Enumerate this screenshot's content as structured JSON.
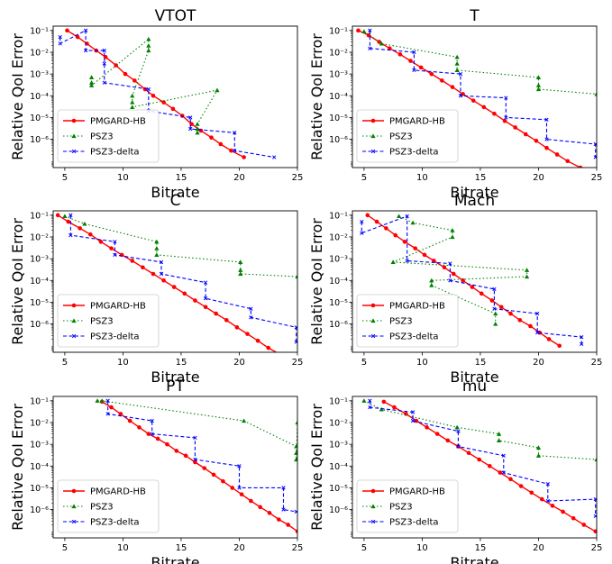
{
  "figure": {
    "ylabel": "Relative QoI Error",
    "xlabel": "Bitrate",
    "legend": [
      "PMGARD-HB",
      "PSZ3",
      "PSZ3-delta"
    ]
  },
  "colors": {
    "PMGARD-HB": "#ff0000",
    "PSZ3": "#008000",
    "PSZ3-delta": "#0000ff"
  },
  "chart_data": [
    {
      "type": "line",
      "title": "VTOT",
      "xlabel": "Bitrate",
      "ylabel": "Relative QoI Error",
      "xlim": [
        4,
        25
      ],
      "xticks": [
        5,
        10,
        15,
        20,
        25
      ],
      "ylim_log10": [
        -7.3,
        -0.8
      ],
      "yscale": "log",
      "yticks": [
        "10^-1",
        "10^-2",
        "10^-3",
        "10^-4",
        "10^-5",
        "10^-6"
      ],
      "legend_position": "lower-left",
      "series": [
        {
          "name": "PMGARD-HB",
          "x": [
            5.2,
            6.1,
            6.9,
            7.7,
            8.5,
            9.4,
            10.2,
            11.0,
            11.9,
            12.6,
            13.5,
            14.3,
            15.1,
            15.9,
            16.7,
            17.6,
            18.4,
            19.3,
            20.4
          ],
          "y": [
            0.1,
            0.05,
            0.025,
            0.012,
            0.006,
            0.0025,
            0.001,
            0.0005,
            0.0002,
            0.0001,
            5e-05,
            2.5e-05,
            1.2e-05,
            5e-06,
            2.5e-06,
            1.2e-06,
            6e-07,
            3e-07,
            1.5e-07
          ]
        },
        {
          "name": "PSZ3",
          "x": [
            7.3,
            7.3,
            7.3,
            12.2,
            12.2,
            12.2,
            10.8,
            10.8,
            10.8,
            18.1,
            16.4,
            16.4,
            16.4
          ],
          "y": [
            0.0007,
            0.0004,
            0.0003,
            0.04,
            0.02,
            0.012,
            0.0001,
            5e-05,
            3e-05,
            0.00018,
            5e-06,
            3e-06,
            2e-06
          ]
        },
        {
          "name": "PSZ3-delta",
          "x": [
            4.6,
            4.6,
            6.8,
            6.8,
            8.4,
            8.4,
            8.4,
            12.2,
            12.2,
            15.8,
            15.8,
            19.6,
            19.6,
            23.0
          ],
          "y": [
            0.05,
            0.025,
            0.1,
            0.012,
            0.012,
            0.003,
            0.0004,
            0.0002,
            2e-05,
            1e-05,
            3e-06,
            2e-06,
            3e-07,
            1.5e-07
          ]
        }
      ]
    },
    {
      "type": "line",
      "title": "T",
      "xlabel": "Bitrate",
      "ylabel": "Relative QoI Error",
      "xlim": [
        4,
        25
      ],
      "xticks": [
        5,
        10,
        15,
        20,
        25
      ],
      "ylim_log10": [
        -7.3,
        -0.8
      ],
      "yscale": "log",
      "yticks": [
        "10^-1",
        "10^-2",
        "10^-3",
        "10^-4",
        "10^-5",
        "10^-6"
      ],
      "legend_position": "lower-left",
      "series": [
        {
          "name": "PMGARD-HB",
          "x": [
            4.5,
            5.4,
            6.3,
            7.2,
            8.1,
            9.0,
            9.9,
            10.8,
            11.7,
            12.6,
            13.5,
            14.4,
            15.3,
            16.2,
            17.1,
            18.0,
            18.9,
            19.8,
            20.7,
            21.6,
            22.5,
            23.6
          ],
          "y": [
            0.1,
            0.06,
            0.03,
            0.015,
            0.008,
            0.004,
            0.002,
            0.001,
            0.0005,
            0.00025,
            0.00012,
            6e-05,
            3e-05,
            1.5e-05,
            7e-06,
            3.5e-06,
            1.7e-06,
            8.5e-07,
            4e-07,
            2e-07,
            1e-07,
            5e-08
          ]
        },
        {
          "name": "PSZ3",
          "x": [
            5.0,
            6.5,
            13.0,
            13.0,
            13.0,
            20.0,
            20.0,
            20.0,
            25.0
          ],
          "y": [
            0.09,
            0.025,
            0.006,
            0.003,
            0.0015,
            0.0007,
            0.0003,
            0.0002,
            0.00012
          ]
        },
        {
          "name": "PSZ3-delta",
          "x": [
            5.5,
            5.5,
            9.3,
            9.3,
            13.3,
            13.3,
            17.2,
            17.2,
            20.7,
            20.7,
            24.9,
            24.9
          ],
          "y": [
            0.1,
            0.015,
            0.01,
            0.0015,
            0.001,
            0.0001,
            8e-05,
            1e-05,
            8e-06,
            1e-06,
            6e-07,
            1.5e-07
          ]
        }
      ]
    },
    {
      "type": "line",
      "title": "C",
      "xlabel": "Bitrate",
      "ylabel": "Relative QoI Error",
      "xlim": [
        4,
        25
      ],
      "xticks": [
        5,
        10,
        15,
        20,
        25
      ],
      "ylim_log10": [
        -7.3,
        -0.8
      ],
      "yscale": "log",
      "yticks": [
        "10^-1",
        "10^-2",
        "10^-3",
        "10^-4",
        "10^-5",
        "10^-6"
      ],
      "legend_position": "lower-left",
      "series": [
        {
          "name": "PMGARD-HB",
          "x": [
            4.4,
            5.3,
            6.3,
            7.2,
            8.1,
            9.0,
            9.9,
            10.8,
            11.7,
            12.6,
            13.5,
            14.4,
            15.3,
            16.2,
            17.1,
            18.0,
            18.9,
            19.8,
            20.7,
            21.6,
            22.5,
            23.5
          ],
          "y": [
            0.1,
            0.05,
            0.025,
            0.013,
            0.006,
            0.003,
            0.0015,
            0.0008,
            0.0004,
            0.0002,
            0.0001,
            5e-05,
            2.5e-05,
            1.2e-05,
            6e-06,
            3e-06,
            1.5e-06,
            7e-07,
            3.5e-07,
            1.7e-07,
            8e-08,
            4e-08
          ]
        },
        {
          "name": "PSZ3",
          "x": [
            5.0,
            6.7,
            12.9,
            12.9,
            12.9,
            20.1,
            20.1,
            20.1,
            25.0
          ],
          "y": [
            0.09,
            0.04,
            0.006,
            0.003,
            0.0015,
            0.0007,
            0.0003,
            0.0002,
            0.00015
          ]
        },
        {
          "name": "PSZ3-delta",
          "x": [
            5.5,
            5.5,
            9.3,
            9.3,
            13.3,
            13.3,
            17.1,
            17.1,
            21.0,
            21.0,
            24.9,
            24.9
          ],
          "y": [
            0.1,
            0.012,
            0.006,
            0.0015,
            0.0007,
            0.0002,
            8e-05,
            1.5e-05,
            5e-06,
            2e-06,
            7e-07,
            1.5e-07
          ]
        }
      ]
    },
    {
      "type": "line",
      "title": "Mach",
      "xlabel": "Bitrate",
      "ylabel": "Relative QoI Error",
      "xlim": [
        4,
        25
      ],
      "xticks": [
        5,
        10,
        15,
        20,
        25
      ],
      "ylim_log10": [
        -7.3,
        -0.8
      ],
      "yscale": "log",
      "yticks": [
        "10^-1",
        "10^-2",
        "10^-3",
        "10^-4",
        "10^-5",
        "10^-6"
      ],
      "legend_position": "lower-left",
      "series": [
        {
          "name": "PMGARD-HB",
          "x": [
            5.3,
            6.1,
            6.9,
            7.7,
            8.5,
            9.4,
            10.2,
            11.0,
            11.9,
            12.7,
            13.5,
            14.3,
            15.1,
            16.0,
            16.8,
            17.6,
            18.4,
            19.3,
            20.1,
            20.9,
            21.8
          ],
          "y": [
            0.1,
            0.05,
            0.025,
            0.012,
            0.006,
            0.003,
            0.0015,
            0.0008,
            0.0004,
            0.0002,
            0.0001,
            5e-05,
            2.5e-05,
            1.2e-05,
            6e-06,
            3e-06,
            1.5e-06,
            8e-07,
            4e-07,
            2e-07,
            1e-07
          ]
        },
        {
          "name": "PSZ3",
          "x": [
            8.0,
            9.2,
            12.6,
            12.6,
            7.5,
            19.0,
            19.0,
            10.8,
            10.8,
            16.3,
            16.3
          ],
          "y": [
            0.09,
            0.045,
            0.02,
            0.01,
            0.0007,
            0.0003,
            0.00015,
            0.0001,
            6e-05,
            3e-06,
            1e-06
          ]
        },
        {
          "name": "PSZ3-delta",
          "x": [
            4.8,
            4.8,
            8.7,
            8.7,
            12.4,
            12.4,
            16.2,
            16.2,
            19.9,
            19.9,
            23.7,
            23.7
          ],
          "y": [
            0.05,
            0.015,
            0.09,
            0.0008,
            0.0006,
            0.0001,
            4e-05,
            5e-06,
            3e-06,
            4e-07,
            2.5e-07,
            1.2e-07
          ]
        }
      ]
    },
    {
      "type": "line",
      "title": "PT",
      "xlabel": "Bitrate",
      "ylabel": "Relative QoI Error",
      "xlim": [
        4,
        25
      ],
      "xticks": [
        5,
        10,
        15,
        20,
        25
      ],
      "ylim_log10": [
        -7.3,
        -0.8
      ],
      "yscale": "log",
      "yticks": [
        "10^-1",
        "10^-2",
        "10^-3",
        "10^-4",
        "10^-5",
        "10^-6"
      ],
      "legend_position": "lower-left",
      "series": [
        {
          "name": "PMGARD-HB",
          "x": [
            8.2,
            9.0,
            9.8,
            10.6,
            11.4,
            12.2,
            13.0,
            13.8,
            14.6,
            15.4,
            16.2,
            17.0,
            17.8,
            18.6,
            19.4,
            20.2,
            21.0,
            21.8,
            22.6,
            23.4,
            24.2,
            25.0
          ],
          "y": [
            0.09,
            0.05,
            0.025,
            0.012,
            0.006,
            0.003,
            0.0018,
            0.001,
            0.0005,
            0.0003,
            0.00015,
            8e-05,
            4e-05,
            2e-05,
            1e-05,
            5e-06,
            2.5e-06,
            1.3e-06,
            7e-07,
            3.5e-07,
            2e-07,
            1e-07
          ]
        },
        {
          "name": "PSZ3",
          "x": [
            7.8,
            8.2,
            20.4,
            24.9,
            24.9,
            24.9,
            25.0
          ],
          "y": [
            0.1,
            0.1,
            0.012,
            0.0008,
            0.0004,
            0.0002,
            0.01
          ]
        },
        {
          "name": "PSZ3-delta",
          "x": [
            8.7,
            8.7,
            12.5,
            12.5,
            16.2,
            16.2,
            20.0,
            20.0,
            23.8,
            23.8,
            24.9
          ],
          "y": [
            0.1,
            0.025,
            0.012,
            0.003,
            0.002,
            0.0002,
            0.0001,
            1e-05,
            1e-05,
            1e-06,
            8e-07
          ]
        }
      ]
    },
    {
      "type": "line",
      "title": "mu",
      "xlabel": "Bitrate",
      "ylabel": "Relative QoI Error",
      "xlim": [
        4,
        25
      ],
      "xticks": [
        5,
        10,
        15,
        20,
        25
      ],
      "ylim_log10": [
        -7.3,
        -0.8
      ],
      "yscale": "log",
      "yticks": [
        "10^-1",
        "10^-2",
        "10^-3",
        "10^-4",
        "10^-5",
        "10^-6"
      ],
      "legend_position": "lower-left",
      "series": [
        {
          "name": "PMGARD-HB",
          "x": [
            6.7,
            7.6,
            8.6,
            9.5,
            10.4,
            11.3,
            12.2,
            13.1,
            14.0,
            14.9,
            15.8,
            16.7,
            17.6,
            18.5,
            19.4,
            20.3,
            21.2,
            22.1,
            23.0,
            23.9,
            24.9
          ],
          "y": [
            0.09,
            0.05,
            0.025,
            0.012,
            0.006,
            0.003,
            0.0015,
            0.0008,
            0.0004,
            0.0002,
            0.0001,
            5e-05,
            2.5e-05,
            1.2e-05,
            6e-06,
            3e-06,
            1.5e-06,
            8e-07,
            4e-07,
            2e-07,
            1e-07
          ]
        },
        {
          "name": "PSZ3",
          "x": [
            5.0,
            6.5,
            13.0,
            16.6,
            16.6,
            20.0,
            20.0,
            25.0
          ],
          "y": [
            0.1,
            0.04,
            0.006,
            0.003,
            0.0015,
            0.0007,
            0.0003,
            0.0002
          ]
        },
        {
          "name": "PSZ3-delta",
          "x": [
            5.5,
            5.5,
            9.2,
            9.2,
            13.1,
            13.1,
            17.0,
            17.0,
            20.8,
            20.8,
            24.9,
            24.9
          ],
          "y": [
            0.1,
            0.05,
            0.03,
            0.012,
            0.004,
            0.0008,
            0.0003,
            5e-05,
            1.5e-05,
            2.5e-06,
            3e-06,
            5e-07
          ]
        }
      ]
    }
  ]
}
